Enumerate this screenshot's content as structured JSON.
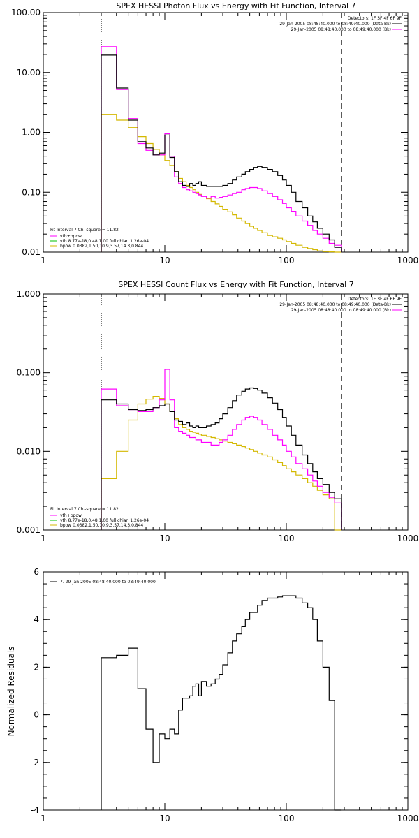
{
  "colors": {
    "data": "#000000",
    "bk": "#000000",
    "vth_bpow": "#ff00ff",
    "vth": "#00c000",
    "bpow": "#d4b800",
    "fit_legend": "#ff00ff"
  },
  "chart_data": [
    {
      "type": "line",
      "title": "SPEX HESSI Photon Flux vs Energy with Fit Function, Interval 7",
      "xscale": "log",
      "yscale": "log",
      "xlim": [
        1,
        1000
      ],
      "ylim": [
        0.01,
        100
      ],
      "x_ticks": [
        "1",
        "10",
        "100",
        "1000"
      ],
      "y_ticks": [
        "0.01",
        "0.10",
        "1.00",
        "10.00",
        "100.00"
      ],
      "xlabel": "",
      "ylabel": "",
      "vlines": [
        {
          "x": 3,
          "style": "dotted"
        },
        {
          "x": 285,
          "style": "dashed"
        }
      ],
      "legend_top": {
        "placement": "top-right",
        "lines": [
          "Detectors: 1F 3F 4F 6F 9F",
          "29-Jan-2005 08:48:40.000 to 08:49:40.000 (Data-Bk)",
          "29-Jan-2005 08:48:40.000 to 08:49:40.000 (Bk)"
        ]
      },
      "fit_legend": {
        "placement": "bottom-left",
        "header": "Fit Interval 7   Chi-square = 11.82",
        "entries": [
          {
            "text": "vth+bpow",
            "color": "#ff00ff"
          },
          {
            "text": "vth 8.77e-18,0.48,1.00  full chian 1.26e-04",
            "color": "#00c000"
          },
          {
            "text": "bpow 0.0382,1.50,10.9,3.57,14.3,0.844",
            "color": "#d4b800"
          }
        ]
      },
      "edges": [
        3.0,
        3.5,
        4.0,
        4.5,
        5.0,
        5.5,
        6.0,
        7.0,
        8.0,
        9.0,
        10.0,
        11.0,
        12.0,
        13.0,
        14.0,
        15.0,
        16.0,
        17.0,
        18.0,
        19.0,
        20.0,
        22.0,
        24.0,
        26.0,
        28.0,
        30.0,
        33.0,
        36.0,
        39.0,
        43.0,
        46.0,
        50.0,
        54.0,
        58.0,
        63.0,
        70.0,
        77.0,
        85.0,
        93.0,
        100.0,
        110.0,
        120.0,
        135.0,
        150.0,
        165.0,
        180.0,
        200.0,
        225.0,
        250.0,
        285.0
      ],
      "series": [
        {
          "key": "data",
          "values": [
            19.5,
            19.5,
            5.5,
            5.5,
            1.6,
            1.6,
            0.7,
            0.55,
            0.42,
            0.45,
            0.9,
            0.38,
            0.22,
            0.15,
            0.13,
            0.125,
            0.14,
            0.13,
            0.14,
            0.15,
            0.13,
            0.125,
            0.125,
            0.125,
            0.125,
            0.13,
            0.14,
            0.16,
            0.18,
            0.2,
            0.22,
            0.24,
            0.26,
            0.27,
            0.26,
            0.24,
            0.22,
            0.19,
            0.16,
            0.13,
            0.1,
            0.07,
            0.055,
            0.04,
            0.032,
            0.025,
            0.02,
            0.016,
            0.012
          ]
        },
        {
          "key": "vth_bpow",
          "values": [
            27.0,
            27.0,
            5.2,
            5.2,
            1.7,
            1.7,
            0.65,
            0.5,
            0.42,
            0.42,
            0.95,
            0.4,
            0.18,
            0.14,
            0.12,
            0.11,
            0.105,
            0.1,
            0.095,
            0.09,
            0.085,
            0.08,
            0.085,
            0.08,
            0.082,
            0.085,
            0.09,
            0.095,
            0.1,
            0.11,
            0.115,
            0.12,
            0.12,
            0.115,
            0.105,
            0.095,
            0.085,
            0.075,
            0.065,
            0.055,
            0.048,
            0.04,
            0.033,
            0.028,
            0.023,
            0.02,
            0.017,
            0.014,
            0.013
          ]
        },
        {
          "key": "bpow",
          "values": [
            2.0,
            2.0,
            1.6,
            1.6,
            1.2,
            1.2,
            0.85,
            0.65,
            0.52,
            0.42,
            0.34,
            0.28,
            0.22,
            0.17,
            0.15,
            0.13,
            0.12,
            0.11,
            0.1,
            0.092,
            0.086,
            0.078,
            0.07,
            0.064,
            0.058,
            0.052,
            0.047,
            0.042,
            0.037,
            0.033,
            0.03,
            0.027,
            0.025,
            0.023,
            0.021,
            0.019,
            0.018,
            0.017,
            0.016,
            0.015,
            0.014,
            0.013,
            0.012,
            0.0115,
            0.011,
            0.0105,
            0.0102,
            0.0101,
            0.01
          ]
        }
      ]
    },
    {
      "type": "line",
      "title": "SPEX HESSI Count Flux vs Energy with Fit Function, Interval 7",
      "xscale": "log",
      "yscale": "log",
      "xlim": [
        1,
        1000
      ],
      "ylim": [
        0.001,
        1
      ],
      "x_ticks": [
        "1",
        "10",
        "100",
        "1000"
      ],
      "y_ticks": [
        "0.001",
        "0.010",
        "0.100",
        "1.000"
      ],
      "xlabel": "",
      "ylabel": "",
      "vlines": [
        {
          "x": 3,
          "style": "dotted"
        },
        {
          "x": 285,
          "style": "dashed"
        }
      ],
      "legend_top": {
        "placement": "top-right",
        "lines": [
          "Detectors: 1F 3F 4F 6F 9F",
          "29-Jan-2005 08:48:40.000 to 08:49:40.000 (Data-Bk)",
          "29-Jan-2005 08:48:40.000 to 08:49:40.000 (Bk)"
        ]
      },
      "fit_legend": {
        "placement": "bottom-left",
        "header": "Fit Interval 7   Chi-square = 11.82",
        "entries": [
          {
            "text": "vth+bpow",
            "color": "#ff00ff"
          },
          {
            "text": "vth 8.77e-18,0.48,1.00  full chian 1.26e-04",
            "color": "#00c000"
          },
          {
            "text": "bpow 0.0382,1.50,10.9,3.57,14.3,0.844",
            "color": "#d4b800"
          }
        ]
      },
      "edges": [
        3.0,
        3.5,
        4.0,
        4.5,
        5.0,
        5.5,
        6.0,
        7.0,
        8.0,
        9.0,
        10.0,
        11.0,
        12.0,
        13.0,
        14.0,
        15.0,
        16.0,
        17.0,
        18.0,
        19.0,
        20.0,
        22.0,
        24.0,
        26.0,
        28.0,
        30.0,
        33.0,
        36.0,
        39.0,
        43.0,
        46.0,
        50.0,
        54.0,
        58.0,
        63.0,
        70.0,
        77.0,
        85.0,
        93.0,
        100.0,
        110.0,
        120.0,
        135.0,
        150.0,
        165.0,
        180.0,
        200.0,
        225.0,
        250.0,
        285.0
      ],
      "series": [
        {
          "key": "data",
          "values": [
            0.045,
            0.045,
            0.04,
            0.04,
            0.034,
            0.034,
            0.033,
            0.034,
            0.036,
            0.038,
            0.04,
            0.032,
            0.025,
            0.024,
            0.022,
            0.023,
            0.021,
            0.02,
            0.021,
            0.02,
            0.02,
            0.021,
            0.022,
            0.023,
            0.026,
            0.03,
            0.036,
            0.044,
            0.052,
            0.058,
            0.062,
            0.064,
            0.063,
            0.06,
            0.055,
            0.048,
            0.041,
            0.034,
            0.027,
            0.021,
            0.016,
            0.012,
            0.009,
            0.007,
            0.0055,
            0.0045,
            0.0038,
            0.003,
            0.0025
          ]
        },
        {
          "key": "vth_bpow",
          "values": [
            0.062,
            0.062,
            0.038,
            0.038,
            0.034,
            0.034,
            0.032,
            0.032,
            0.036,
            0.045,
            0.11,
            0.045,
            0.02,
            0.018,
            0.017,
            0.016,
            0.015,
            0.015,
            0.014,
            0.014,
            0.013,
            0.013,
            0.012,
            0.012,
            0.013,
            0.014,
            0.016,
            0.019,
            0.022,
            0.025,
            0.027,
            0.028,
            0.027,
            0.025,
            0.022,
            0.019,
            0.016,
            0.014,
            0.012,
            0.01,
            0.0085,
            0.007,
            0.006,
            0.005,
            0.0042,
            0.0036,
            0.003,
            0.0026,
            0.0022
          ]
        },
        {
          "key": "bpow",
          "values": [
            0.0045,
            0.0045,
            0.01,
            0.01,
            0.025,
            0.025,
            0.04,
            0.046,
            0.05,
            0.047,
            0.04,
            0.032,
            0.026,
            0.022,
            0.02,
            0.019,
            0.018,
            0.0175,
            0.017,
            0.0165,
            0.016,
            0.0155,
            0.015,
            0.0145,
            0.014,
            0.0135,
            0.013,
            0.0125,
            0.012,
            0.0115,
            0.011,
            0.0105,
            0.01,
            0.0095,
            0.009,
            0.0085,
            0.0078,
            0.0072,
            0.0066,
            0.006,
            0.0055,
            0.005,
            0.0045,
            0.004,
            0.0036,
            0.0032,
            0.0028,
            0.0025,
            0.001
          ]
        }
      ]
    },
    {
      "type": "line",
      "title": "",
      "xscale": "log",
      "yscale": "linear",
      "xlim": [
        1,
        1000
      ],
      "ylim": [
        -4,
        6
      ],
      "x_ticks": [
        "1",
        "10",
        "100",
        "1000"
      ],
      "y_ticks": [
        "-4",
        "-2",
        "0",
        "2",
        "4",
        "6"
      ],
      "xlabel": "",
      "ylabel": "Normalized Residuals",
      "legend": "7. 29-Jan-2005 08:48:40.000 to 08:49:40.000",
      "edges": [
        3.0,
        3.5,
        4.0,
        4.5,
        5.0,
        5.5,
        6.0,
        7.0,
        8.0,
        9.0,
        10.0,
        11.0,
        12.0,
        13.0,
        14.0,
        15.0,
        16.0,
        17.0,
        18.0,
        19.0,
        20.0,
        22.0,
        24.0,
        26.0,
        28.0,
        30.0,
        33.0,
        36.0,
        39.0,
        43.0,
        46.0,
        50.0,
        54.0,
        58.0,
        63.0,
        70.0,
        77.0,
        85.0,
        93.0,
        100.0,
        110.0,
        120.0,
        135.0,
        150.0,
        165.0,
        180.0,
        200.0,
        225.0,
        250.0,
        285.0
      ],
      "series": [
        {
          "key": "data",
          "values": [
            2.4,
            2.4,
            2.5,
            2.5,
            2.8,
            2.8,
            1.1,
            -0.6,
            -2.0,
            -0.8,
            -1.0,
            -0.6,
            -0.8,
            0.2,
            0.7,
            0.7,
            0.8,
            1.2,
            1.3,
            0.8,
            1.4,
            1.2,
            1.3,
            1.5,
            1.7,
            2.1,
            2.6,
            3.1,
            3.4,
            3.7,
            4.0,
            4.3,
            4.3,
            4.6,
            4.8,
            4.9,
            4.9,
            4.95,
            5.0,
            5.0,
            5.0,
            4.9,
            4.7,
            4.5,
            4.0,
            3.1,
            2.0,
            0.6,
            -4.0
          ]
        }
      ]
    }
  ]
}
